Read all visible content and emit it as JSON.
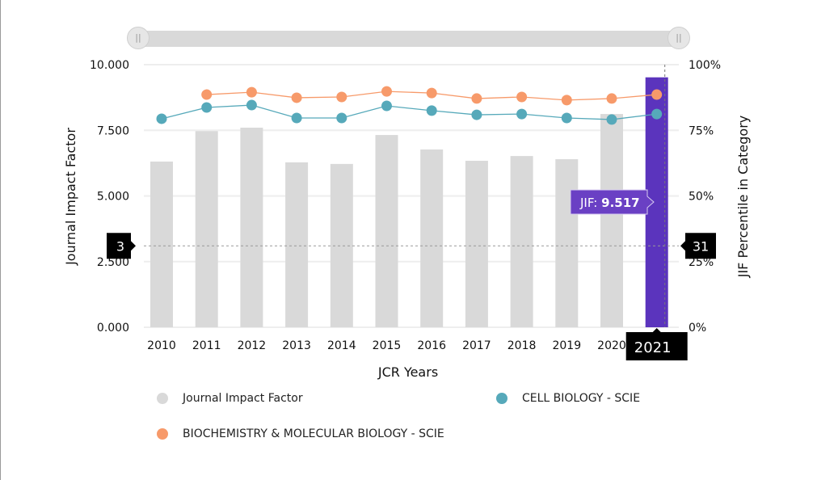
{
  "chart_data": {
    "type": "bar+line",
    "categories": [
      "2010",
      "2011",
      "2012",
      "2013",
      "2014",
      "2015",
      "2016",
      "2017",
      "2018",
      "2019",
      "2020",
      "2021"
    ],
    "xlabel": "JCR Years",
    "ylabel": "Journal Impact Factor",
    "y2label": "JIF Percentile in Category",
    "ylim": [
      0,
      10
    ],
    "y2lim": [
      0,
      100
    ],
    "yticks": [
      "0.000",
      "2.500",
      "5.000",
      "7.500",
      "10.000"
    ],
    "y2ticks": [
      "0%",
      "25%",
      "50%",
      "75%",
      "100%"
    ],
    "grid": true,
    "legend_placement": "bottom",
    "series": [
      {
        "name": "Journal Impact Factor",
        "kind": "bar",
        "axis": "left",
        "color": "#d9d9d9",
        "highlight_color": "#5b34bd",
        "values": [
          6.31,
          7.47,
          7.6,
          6.28,
          6.22,
          7.32,
          6.77,
          6.34,
          6.52,
          6.4,
          8.12,
          9.517
        ]
      },
      {
        "name": "CELL BIOLOGY - SCIE",
        "kind": "line",
        "axis": "right",
        "color": "#56a9ba",
        "values": [
          79.4,
          83.7,
          84.6,
          79.7,
          79.7,
          84.3,
          82.5,
          80.9,
          81.2,
          79.7,
          79.1,
          81.2
        ]
      },
      {
        "name": "BIOCHEMISTRY & MOLECULAR BIOLOGY - SCIE",
        "kind": "line",
        "axis": "right",
        "color": "#f79a6a",
        "values": [
          null,
          88.6,
          89.5,
          87.4,
          87.7,
          89.8,
          89.2,
          87.1,
          87.7,
          86.5,
          87.1,
          88.6
        ]
      }
    ],
    "highlighted_category": "2021",
    "tooltip": {
      "label": "JIF:",
      "value": "9.517"
    },
    "crosshair": {
      "left_value": "3",
      "right_value": "31",
      "x_label": "2021"
    }
  }
}
